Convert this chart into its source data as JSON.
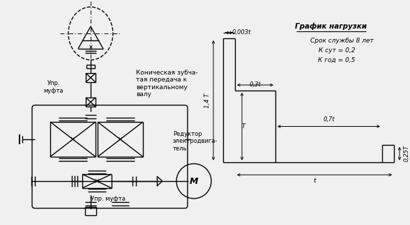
{
  "bg_color": "#f0f0f0",
  "title": "График нагрузки",
  "subtitle1": "Срок службы 8 лет",
  "subtitle2": "К сут = 0,2",
  "subtitle3": "К год = 0,5",
  "dim_003t": "0,003t",
  "dim_03t": "0,3t",
  "dim_07t": "0,7t",
  "dim_14T": "1,4 T",
  "dim_T": "T",
  "dim_025T": "0,25T",
  "dim_t": "t",
  "text_konus": "Коническая зубча-\nтая передача к\nвертикальному\nвалу",
  "text_reduktor": "Редуктор\nэлектродвига-\nтель",
  "text_upr1": "Упр.\nмуфта",
  "text_upr2": "Упр. муфта",
  "text_motor": "М",
  "line_color": "#000000",
  "lw": 1.0,
  "font_size": 6.5
}
